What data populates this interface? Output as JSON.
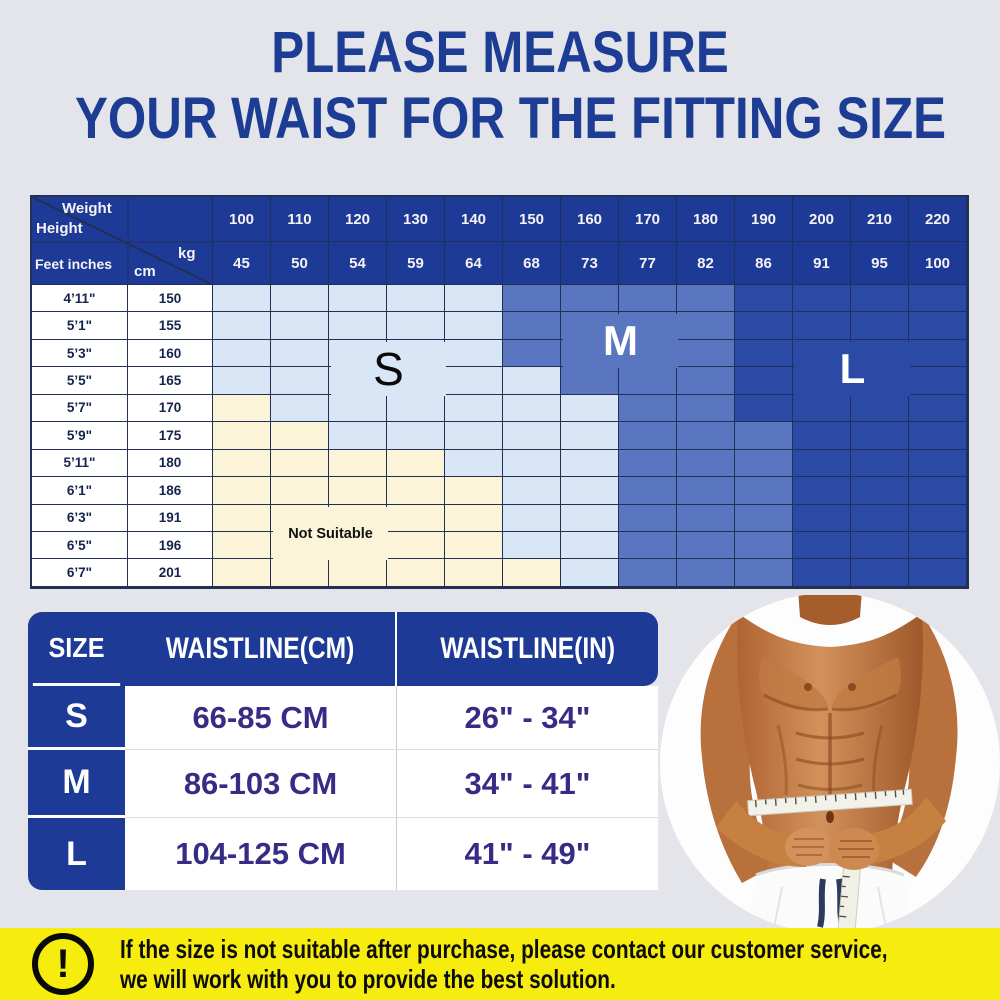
{
  "title": {
    "line1": "PLEASE MEASURE",
    "line2": "YOUR WAIST FOR THE FITTING SIZE"
  },
  "size_grid": {
    "corner": {
      "weight": "Weight",
      "height": "Height",
      "feet_inches": "Feet inches",
      "cm": "cm",
      "kg": "kg"
    },
    "weights_lb": [
      "100",
      "110",
      "120",
      "130",
      "140",
      "150",
      "160",
      "170",
      "180",
      "190",
      "200",
      "210",
      "220"
    ],
    "weights_kg": [
      "45",
      "50",
      "54",
      "59",
      "64",
      "68",
      "73",
      "77",
      "82",
      "86",
      "91",
      "95",
      "100"
    ],
    "zone_colors": {
      "s": "#d9e6f5",
      "m": "#5b76c1",
      "l": "#2b4aa5",
      "n": "#fbf4d9"
    },
    "rows": [
      {
        "feet": "4’11\"",
        "cm": "150",
        "zones": "sssssmmmmllll"
      },
      {
        "feet": "5’1\"",
        "cm": "155",
        "zones": "sssssmmmmllll"
      },
      {
        "feet": "5’3\"",
        "cm": "160",
        "zones": "sssssmmmmllll"
      },
      {
        "feet": "5’5\"",
        "cm": "165",
        "zones": "ssssssmmmllll"
      },
      {
        "feet": "5’7\"",
        "cm": "170",
        "zones": "nssssssmmllll"
      },
      {
        "feet": "5’9\"",
        "cm": "175",
        "zones": "nnsssssmmmlll"
      },
      {
        "feet": "5’11\"",
        "cm": "180",
        "zones": "nnnnsssmmmlll"
      },
      {
        "feet": "6’1\"",
        "cm": "186",
        "zones": "nnnnnssmmmlll"
      },
      {
        "feet": "6’3\"",
        "cm": "191",
        "zones": "nnnnnssmmmlll"
      },
      {
        "feet": "6’5\"",
        "cm": "196",
        "zones": "nnnnnssmmmlll"
      },
      {
        "feet": "6’7\"",
        "cm": "201",
        "zones": "nnnnnnsmmmlll"
      }
    ],
    "labels": [
      {
        "text": "S",
        "zone": "s",
        "row": 3,
        "col": 3,
        "row_span": 2,
        "col_span": 2,
        "style": "letter-dark"
      },
      {
        "text": "M",
        "zone": "m",
        "row": 2,
        "col": 7,
        "row_span": 2,
        "col_span": 2,
        "style": "letter-light"
      },
      {
        "text": "L",
        "zone": "l",
        "row": 3,
        "col": 11,
        "row_span": 2,
        "col_span": 2,
        "style": "letter-light"
      },
      {
        "text": "Not Suitable",
        "zone": "n",
        "row": 9,
        "col": 2,
        "row_span": 2,
        "col_span": 2,
        "style": "small-dark"
      }
    ]
  },
  "waist_table": {
    "headers": [
      "SIZE",
      "WAISTLINE(CM)",
      "WAISTLINE(IN)"
    ],
    "rows": [
      {
        "size": "S",
        "cm": "66-85 CM",
        "inch": "26\" - 34\""
      },
      {
        "size": "M",
        "cm": "86-103 CM",
        "inch": "34\" - 41\""
      },
      {
        "size": "L",
        "cm": "104-125 CM",
        "inch": "41\" - 49\""
      }
    ]
  },
  "notice": {
    "icon": "exclamation-icon",
    "line1": "If the size is not suitable after purchase, please contact our customer service,",
    "line2": "we will work with you to provide the best solution."
  },
  "colors": {
    "page_bg": "#e4e5ea",
    "title_text": "#1d3c94",
    "table_header_blue": "#1c3a96",
    "zone_light": "#d9e6f5",
    "zone_medium": "#5b76c1",
    "zone_dark": "#2b4aa5",
    "zone_not_suitable": "#fbf4d9",
    "grid_line": "#223055",
    "body_text": "#372c85",
    "banner_bg": "#f6ec0d",
    "banner_text": "#111111"
  }
}
